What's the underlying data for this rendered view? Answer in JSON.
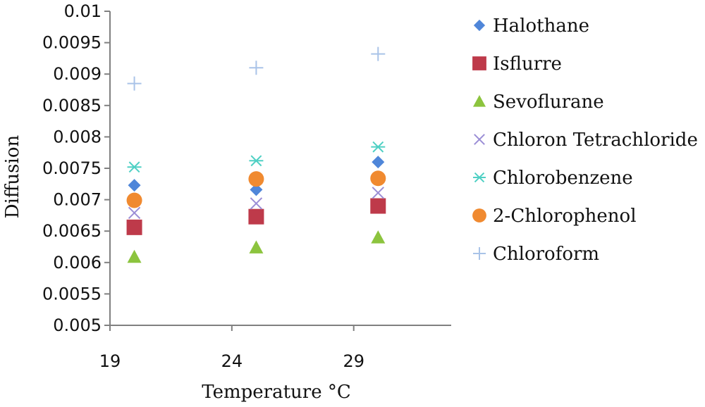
{
  "chart_data": {
    "type": "scatter",
    "title": "",
    "xlabel": "Temperature °C",
    "ylabel": "Diffusion",
    "xlim": [
      19,
      33
    ],
    "ylim": [
      0.005,
      0.01
    ],
    "x_ticks": [
      "19",
      "24",
      "29"
    ],
    "y_ticks": [
      "0.005",
      "0.0055",
      "0.006",
      "0.0065",
      "0.007",
      "0.0075",
      "0.008",
      "0.0085",
      "0.009",
      "0.0095",
      "0.01"
    ],
    "grid": false,
    "legend_position": "right",
    "series": [
      {
        "name": "Halothane",
        "marker": "diamond",
        "color": "#4f86d9",
        "x": [
          20,
          25,
          30
        ],
        "y": [
          0.00723,
          0.00716,
          0.0076
        ]
      },
      {
        "name": "Isflurre",
        "marker": "square",
        "color": "#be3a4a",
        "x": [
          20,
          25,
          30
        ],
        "y": [
          0.00656,
          0.00673,
          0.0069
        ]
      },
      {
        "name": "Sevoflurane",
        "marker": "triangle",
        "color": "#8cc43e",
        "x": [
          20,
          25,
          30
        ],
        "y": [
          0.00609,
          0.00624,
          0.0064
        ]
      },
      {
        "name": "Chloron Tetrachloride",
        "marker": "x",
        "color": "#9b8ed6",
        "x": [
          20,
          25,
          30
        ],
        "y": [
          0.00679,
          0.00694,
          0.00711
        ]
      },
      {
        "name": "Chlorobenzene",
        "marker": "asterisk",
        "color": "#4fd0c4",
        "x": [
          20,
          25,
          30
        ],
        "y": [
          0.00752,
          0.00762,
          0.00784
        ]
      },
      {
        "name": "2-Chlorophenol",
        "marker": "circle",
        "color": "#f08a30",
        "x": [
          20,
          25,
          30
        ],
        "y": [
          0.00699,
          0.00733,
          0.00734
        ]
      },
      {
        "name": "Chloroform",
        "marker": "plus",
        "color": "#a9c3e8",
        "x": [
          20,
          25,
          30
        ],
        "y": [
          0.00885,
          0.0091,
          0.00932
        ]
      }
    ]
  }
}
